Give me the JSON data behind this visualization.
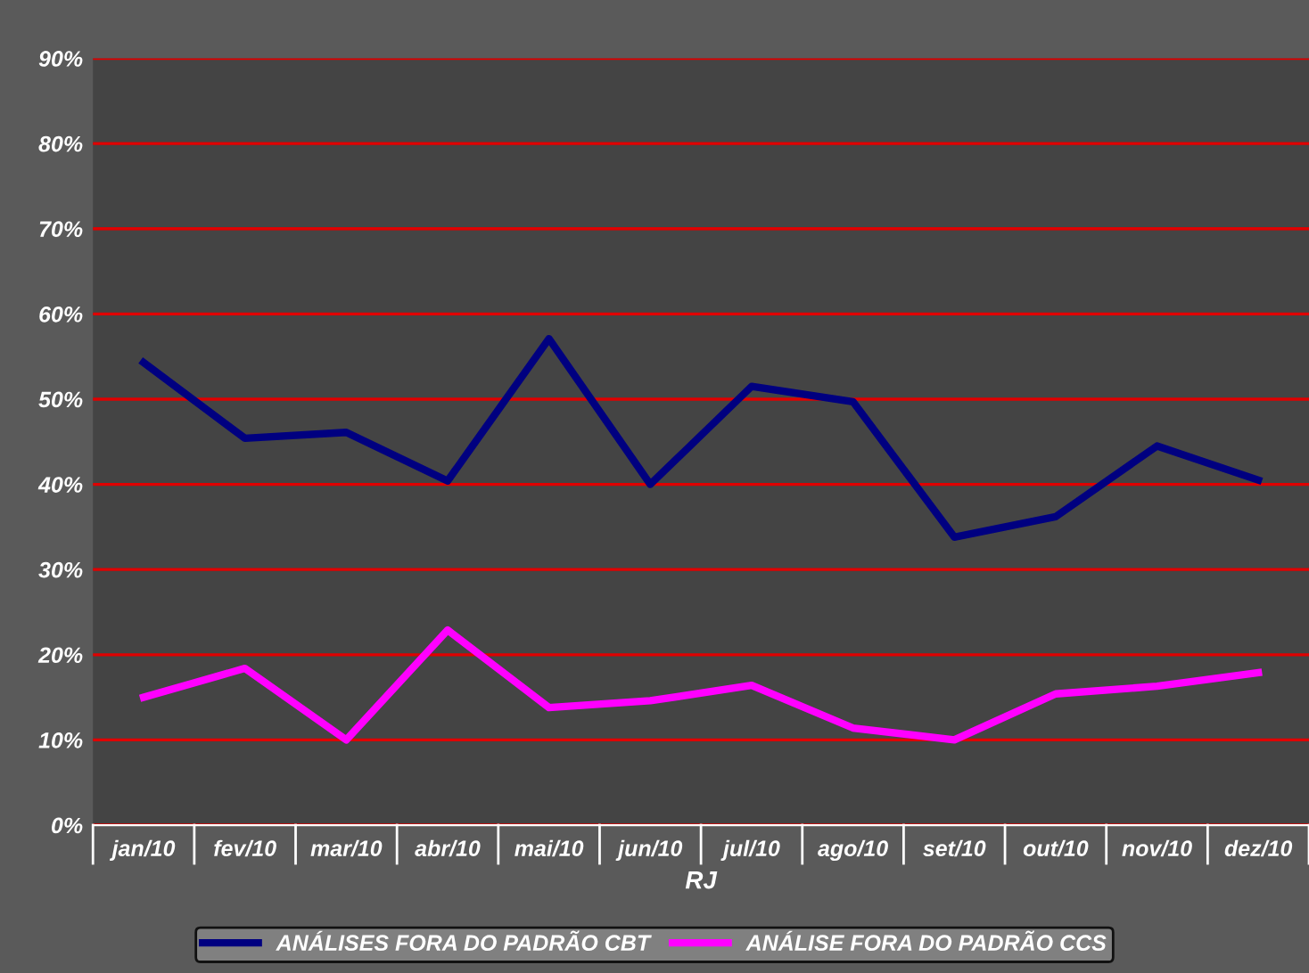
{
  "chart_data": {
    "type": "line",
    "xlabel": "RJ",
    "categories": [
      "jan/10",
      "fev/10",
      "mar/10",
      "abr/10",
      "mai/10",
      "jun/10",
      "jul/10",
      "ago/10",
      "set/10",
      "out/10",
      "nov/10",
      "dez/10"
    ],
    "series": [
      {
        "name": "ANÁLISES FORA DO PADRÃO CBT",
        "color": "#000080",
        "values": [
          54.3,
          45.4,
          46.1,
          40.4,
          57.1,
          40.0,
          51.5,
          49.7,
          33.8,
          36.2,
          44.5,
          40.5
        ]
      },
      {
        "name": "ANÁLISE FORA DO PADRÃO CCS",
        "color": "#ff00ff",
        "values": [
          15.0,
          18.4,
          10.0,
          22.9,
          13.8,
          14.6,
          16.4,
          11.4,
          10.0,
          15.4,
          16.3,
          17.9
        ]
      }
    ],
    "ylim": [
      0,
      90
    ],
    "yticks": [
      {
        "value": 0,
        "label": "0%"
      },
      {
        "value": 10,
        "label": "10%"
      },
      {
        "value": 20,
        "label": "20%"
      },
      {
        "value": 30,
        "label": "30%"
      },
      {
        "value": 40,
        "label": "40%"
      },
      {
        "value": 50,
        "label": "50%"
      },
      {
        "value": 60,
        "label": "60%"
      },
      {
        "value": 70,
        "label": "70%"
      },
      {
        "value": 80,
        "label": "80%"
      },
      {
        "value": 90,
        "label": "90%"
      }
    ],
    "grid": "y",
    "legend": "bottom",
    "marker": "none",
    "line_style": "solid"
  }
}
